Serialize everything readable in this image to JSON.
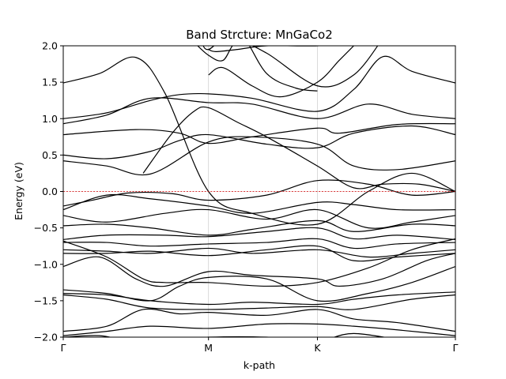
{
  "chart_data": {
    "type": "line",
    "title": "Band Strcture: MnGaCo2",
    "xlabel": "k-path",
    "ylabel": "Energy (eV)",
    "ylim": [
      -2.0,
      2.0
    ],
    "xlim": [
      0,
      2.7
    ],
    "grid": "vertical lines at high-symmetry points",
    "legend": "none",
    "line_color": "#000000",
    "fermi_color": "#cc0000",
    "fermi_level": 0.0,
    "xticks": [
      {
        "label": "Γ",
        "x": 0.0
      },
      {
        "label": "M",
        "x": 1.0
      },
      {
        "label": "K",
        "x": 1.75
      },
      {
        "label": "Γ",
        "x": 2.7
      }
    ],
    "yticks": [
      {
        "label": "2.0",
        "y": 2.0
      },
      {
        "label": "1.5",
        "y": 1.5
      },
      {
        "label": "1.0",
        "y": 1.0
      },
      {
        "label": "0.5",
        "y": 0.5
      },
      {
        "label": "0.0",
        "y": 0.0
      },
      {
        "label": "−0.5",
        "y": -0.5
      },
      {
        "label": "−1.0",
        "y": -1.0
      },
      {
        "label": "−1.5",
        "y": -1.5
      },
      {
        "label": "−2.0",
        "y": -2.0
      }
    ],
    "series": [
      {
        "x": [
          0,
          0.25,
          0.5,
          0.7,
          1.0,
          1.3,
          1.75,
          2.1,
          2.4,
          2.7
        ],
        "y": [
          1.49,
          1.62,
          1.84,
          1.35,
          0.0,
          -0.3,
          -0.45,
          0.0,
          0.25,
          0.0
        ]
      },
      {
        "x": [
          0,
          0.3,
          0.6,
          0.8,
          1.0,
          1.3,
          1.75,
          2.0,
          2.2,
          2.4,
          2.7
        ],
        "y": [
          1.0,
          1.08,
          1.25,
          1.33,
          1.34,
          1.28,
          1.1,
          1.4,
          1.85,
          1.65,
          1.49
        ]
      },
      {
        "x": [
          0,
          0.3,
          0.6,
          1.0,
          1.3,
          1.75,
          2.1,
          2.4,
          2.7
        ],
        "y": [
          0.93,
          1.05,
          1.28,
          1.22,
          1.2,
          1.0,
          1.2,
          1.06,
          1.0
        ]
      },
      {
        "x": [
          0,
          0.5,
          0.8,
          1.0,
          1.3,
          1.75,
          1.9,
          2.3,
          2.7
        ],
        "y": [
          0.78,
          0.85,
          0.8,
          0.66,
          0.75,
          0.87,
          0.8,
          0.92,
          0.93
        ]
      },
      {
        "x": [
          0,
          0.3,
          0.6,
          0.8,
          1.0,
          1.4,
          1.75,
          2.0,
          2.4,
          2.7
        ],
        "y": [
          0.5,
          0.45,
          0.55,
          0.7,
          0.78,
          0.65,
          0.6,
          0.8,
          0.9,
          0.78
        ]
      },
      {
        "x": [
          0,
          0.3,
          0.6,
          1.0,
          1.3,
          1.75,
          2.0,
          2.3,
          2.7
        ],
        "y": [
          0.42,
          0.35,
          0.24,
          0.68,
          0.75,
          0.65,
          0.35,
          0.3,
          0.42
        ]
      },
      {
        "x": [
          0,
          0.2,
          0.45,
          0.75,
          1.0,
          1.4,
          1.75,
          2.1,
          2.4,
          2.7
        ],
        "y": [
          -0.2,
          -0.12,
          -0.02,
          -0.03,
          -0.12,
          -0.05,
          0.15,
          0.1,
          -0.05,
          0.0
        ]
      },
      {
        "x": [
          0,
          0.3,
          0.6,
          1.0,
          1.3,
          1.75,
          2.0,
          2.3,
          2.7
        ],
        "y": [
          -0.25,
          -0.05,
          -0.1,
          -0.2,
          -0.3,
          -0.15,
          -0.18,
          -0.25,
          -0.25
        ]
      },
      {
        "x": [
          0,
          0.3,
          0.7,
          1.0,
          1.4,
          1.75,
          2.1,
          2.4,
          2.7
        ],
        "y": [
          -0.33,
          -0.42,
          -0.3,
          -0.25,
          -0.38,
          -0.25,
          -0.5,
          -0.42,
          -0.33
        ]
      },
      {
        "x": [
          0,
          0.3,
          0.6,
          1.0,
          1.3,
          1.75,
          2.0,
          2.4,
          2.7
        ],
        "y": [
          -0.47,
          -0.45,
          -0.5,
          -0.6,
          -0.52,
          -0.4,
          -0.55,
          -0.45,
          -0.47
        ]
      },
      {
        "x": [
          0,
          0.3,
          0.7,
          1.0,
          1.4,
          1.75,
          2.0,
          2.3,
          2.7
        ],
        "y": [
          -0.66,
          -0.6,
          -0.6,
          -0.62,
          -0.55,
          -0.5,
          -0.65,
          -0.6,
          -0.66
        ]
      },
      {
        "x": [
          0,
          0.3,
          0.6,
          1.0,
          1.4,
          1.75,
          2.0,
          2.3,
          2.7
        ],
        "y": [
          -0.7,
          -0.7,
          -0.75,
          -0.72,
          -0.7,
          -0.65,
          -0.78,
          -0.72,
          -0.7
        ]
      },
      {
        "x": [
          0,
          0.3,
          0.6,
          1.0,
          1.3,
          1.75,
          2.1,
          2.4,
          2.7
        ],
        "y": [
          -0.8,
          -0.82,
          -0.85,
          -0.78,
          -0.85,
          -0.8,
          -0.9,
          -0.85,
          -0.8
        ]
      },
      {
        "x": [
          0,
          0.3,
          0.6,
          1.0,
          1.4,
          1.75,
          2.0,
          2.3,
          2.7
        ],
        "y": [
          -0.85,
          -0.85,
          -0.82,
          -0.88,
          -0.8,
          -0.75,
          -0.95,
          -0.9,
          -0.85
        ]
      },
      {
        "x": [
          0,
          0.25,
          0.5,
          0.7,
          1.0,
          1.3,
          1.75,
          1.9,
          2.2,
          2.5,
          2.7
        ],
        "y": [
          -1.03,
          -0.9,
          -1.2,
          -1.3,
          -1.1,
          -1.15,
          -1.2,
          -1.3,
          -1.2,
          -0.95,
          -0.85
        ]
      },
      {
        "x": [
          0,
          0.3,
          0.55,
          0.7,
          1.0,
          1.4,
          1.75,
          2.1,
          2.4,
          2.7
        ],
        "y": [
          -0.68,
          -0.9,
          -1.2,
          -1.25,
          -1.25,
          -1.3,
          -1.25,
          -1.05,
          -0.8,
          -0.65
        ]
      },
      {
        "x": [
          0,
          0.3,
          0.6,
          0.8,
          1.0,
          1.4,
          1.75,
          2.1,
          2.4,
          2.7
        ],
        "y": [
          -1.35,
          -1.4,
          -1.5,
          -1.3,
          -1.18,
          -1.2,
          -1.5,
          -1.4,
          -1.25,
          -1.03
        ]
      },
      {
        "x": [
          0,
          0.3,
          0.6,
          1.0,
          1.3,
          1.75,
          2.0,
          2.3,
          2.7
        ],
        "y": [
          -1.4,
          -1.42,
          -1.5,
          -1.55,
          -1.52,
          -1.55,
          -1.48,
          -1.42,
          -1.38
        ]
      },
      {
        "x": [
          0,
          0.3,
          0.6,
          1.0,
          1.4,
          1.75,
          2.0,
          2.4,
          2.7
        ],
        "y": [
          -1.42,
          -1.48,
          -1.6,
          -1.62,
          -1.6,
          -1.58,
          -1.62,
          -1.48,
          -1.42
        ]
      },
      {
        "x": [
          0,
          0.3,
          0.55,
          0.8,
          1.0,
          1.4,
          1.75,
          2.0,
          2.3,
          2.7
        ],
        "y": [
          -1.92,
          -1.85,
          -1.62,
          -1.68,
          -1.66,
          -1.7,
          -1.62,
          -1.75,
          -1.8,
          -1.92
        ]
      },
      {
        "x": [
          0,
          0.3,
          0.6,
          1.0,
          1.4,
          1.75,
          2.0,
          2.3,
          2.7
        ],
        "y": [
          -1.98,
          -1.92,
          -1.85,
          -1.88,
          -1.82,
          -1.82,
          -1.85,
          -1.9,
          -1.98
        ]
      },
      {
        "x": [
          0,
          0.25,
          0.5,
          1.0,
          1.4,
          1.75,
          2.0,
          2.4,
          2.7
        ],
        "y": [
          -2.0,
          -1.98,
          -2.05,
          -2.0,
          -2.0,
          -2.05,
          -1.95,
          -2.05,
          -2.0
        ]
      },
      {
        "x": [
          0.95,
          1.0,
          1.2,
          1.4,
          1.6,
          1.75
        ],
        "y": [
          2.1,
          1.95,
          2.2,
          1.62,
          1.42,
          1.38
        ]
      },
      {
        "x": [
          0.9,
          1.0,
          1.1,
          1.2,
          1.4,
          1.75,
          2.0,
          2.2
        ],
        "y": [
          2.05,
          1.87,
          1.8,
          2.05,
          1.9,
          1.45,
          1.6,
          2.1
        ]
      },
      {
        "x": [
          1.0,
          1.05,
          1.2,
          1.4,
          1.75,
          1.95
        ],
        "y": [
          1.95,
          1.92,
          1.95,
          2.0,
          2.0,
          2.05
        ]
      },
      {
        "x": [
          1.0,
          1.1,
          1.3,
          1.5,
          1.75,
          1.9,
          2.0
        ],
        "y": [
          1.6,
          1.7,
          1.45,
          1.3,
          1.5,
          1.8,
          2.0
        ]
      },
      {
        "x": [
          0.55,
          0.75,
          0.9,
          1.0,
          1.2,
          1.4,
          1.75,
          2.0,
          2.2,
          2.45,
          2.7
        ],
        "y": [
          0.25,
          0.8,
          1.1,
          1.15,
          0.95,
          0.75,
          0.35,
          0.05,
          0.1,
          0.1,
          0.0
        ]
      }
    ]
  }
}
